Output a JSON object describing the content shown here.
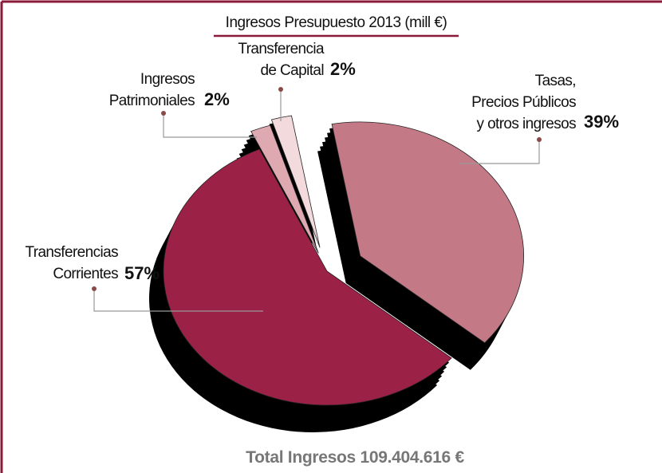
{
  "chart_data": {
    "type": "pie",
    "title": "Ingresos Presupuesto 2013 (mill €)",
    "categories": [
      "Tasas,\nPrecios Públicos\ny otros ingresos",
      "Transferencias\nCorrientes",
      "Ingresos\nPatrimoniales",
      "Transferencia\nde Capital"
    ],
    "values": [
      39,
      57,
      2,
      2
    ],
    "value_labels": [
      "39%",
      "57%",
      "2%",
      "2%"
    ],
    "colors": [
      "#c47a86",
      "#9b2246",
      "#dfa9b1",
      "#f2dadd"
    ],
    "total": "Total Ingresos 109.404.616 €"
  }
}
